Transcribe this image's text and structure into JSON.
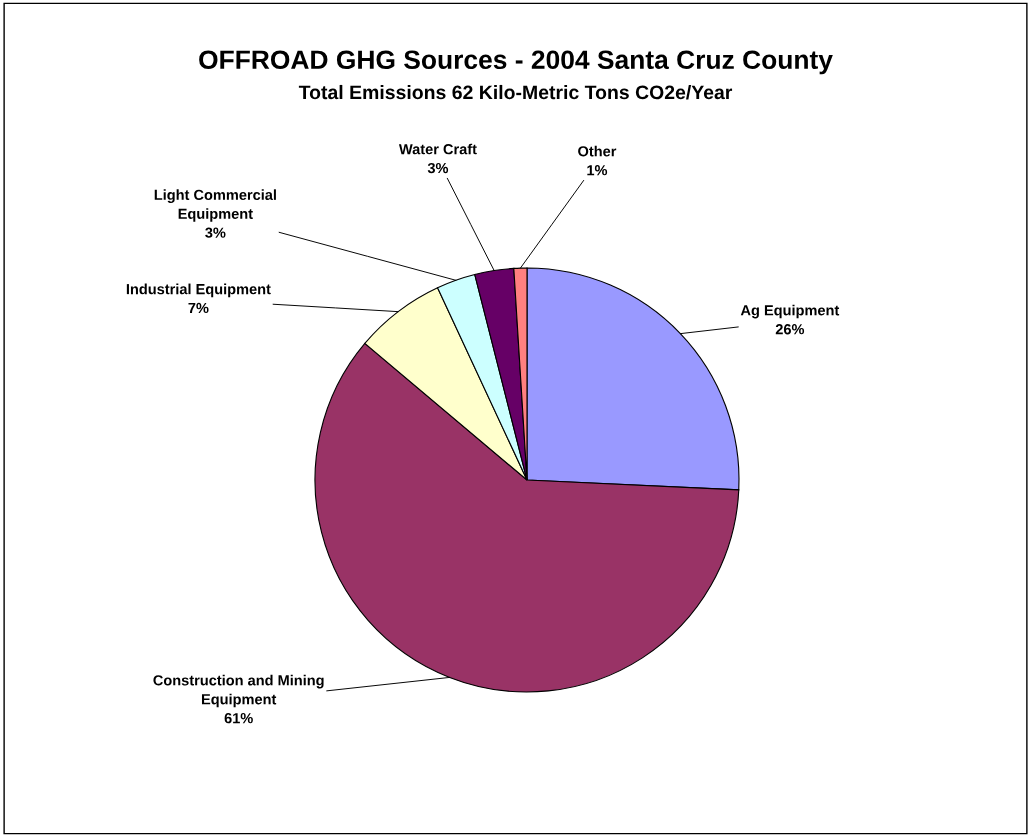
{
  "chart_data": {
    "type": "pie",
    "title": "OFFROAD GHG Sources - 2004 Santa Cruz County",
    "subtitle": "Total Emissions 62 Kilo-Metric Tons CO2e/Year",
    "categories": [
      "Ag Equipment",
      "Construction and Mining Equipment",
      "Industrial Equipment",
      "Light Commercial Equipment",
      "Water Craft",
      "Other"
    ],
    "values": [
      26,
      61,
      7,
      3,
      3,
      1
    ],
    "colors": [
      "#9999ff",
      "#993366",
      "#ffffcc",
      "#ccffff",
      "#660066",
      "#ff8080"
    ],
    "value_labels": [
      "26%",
      "61%",
      "7%",
      "3%",
      "3%",
      "1%"
    ],
    "legend": false
  }
}
